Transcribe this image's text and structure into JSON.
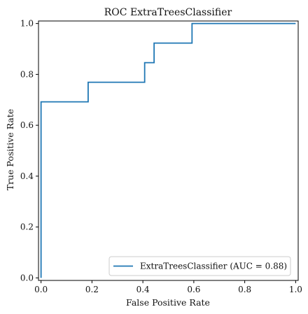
{
  "chart_data": {
    "type": "line",
    "title": "ROC ExtraTreesClassifier",
    "xlabel": "False Positive Rate",
    "ylabel": "True Positive Rate",
    "xlim": [
      -0.01,
      1.01
    ],
    "ylim": [
      -0.01,
      1.01
    ],
    "x_ticks": [
      "0.0",
      "0.2",
      "0.4",
      "0.6",
      "0.8",
      "1.0"
    ],
    "y_ticks": [
      "0.0",
      "0.2",
      "0.4",
      "0.6",
      "0.8",
      "1.0"
    ],
    "grid": false,
    "legend_position": "bottom-right",
    "series": [
      {
        "name": "ExtraTreesClassifier (AUC = 0.88)",
        "color": "#1f77b4",
        "x": [
          0.0,
          0.0,
          0.0,
          0.185,
          0.185,
          0.407,
          0.407,
          0.444,
          0.444,
          0.593,
          0.593,
          1.0
        ],
        "y": [
          0.0,
          0.077,
          0.692,
          0.692,
          0.769,
          0.769,
          0.846,
          0.846,
          0.923,
          0.923,
          1.0,
          1.0
        ]
      }
    ]
  }
}
